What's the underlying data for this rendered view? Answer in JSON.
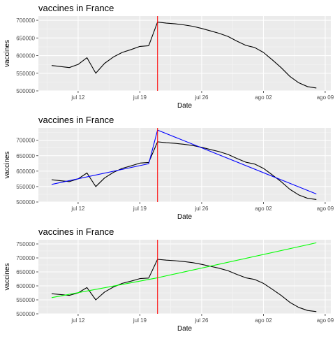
{
  "colors": {
    "panel": "#ebebeb",
    "grid_major": "#ffffff",
    "grid_minor": "#f5f5f5",
    "vline": "#ff0000",
    "data_line": "#000000"
  },
  "chart_data": [
    {
      "type": "line",
      "title": "vaccines in France",
      "xlabel": "Date",
      "ylabel": "vaccines",
      "x_tick_labels": [
        "jul 12",
        "jul 19",
        "jul 26",
        "ago 02",
        "ago 09"
      ],
      "y_tick_labels": [
        "500000",
        "550000",
        "600000",
        "650000",
        "700000"
      ],
      "ylim": [
        500000,
        712000
      ],
      "x_start_date": "2021-07-09",
      "vline_date": "2021-07-21",
      "series": [
        {
          "color": "#000000",
          "dates": [
            "2021-07-09",
            "2021-07-10",
            "2021-07-11",
            "2021-07-12",
            "2021-07-13",
            "2021-07-14",
            "2021-07-15",
            "2021-07-16",
            "2021-07-17",
            "2021-07-18",
            "2021-07-19",
            "2021-07-20",
            "2021-07-21",
            "2021-07-22",
            "2021-07-23",
            "2021-07-24",
            "2021-07-25",
            "2021-07-26",
            "2021-07-27",
            "2021-07-28",
            "2021-07-29",
            "2021-07-30",
            "2021-07-31",
            "2021-08-01",
            "2021-08-02",
            "2021-08-03",
            "2021-08-04",
            "2021-08-05",
            "2021-08-06",
            "2021-08-07",
            "2021-08-08"
          ],
          "values": [
            572000,
            569000,
            566000,
            575000,
            594000,
            550000,
            578000,
            596000,
            609000,
            617000,
            626000,
            628000,
            695000,
            692000,
            690000,
            687000,
            683000,
            677000,
            670000,
            663000,
            654000,
            641000,
            629000,
            623000,
            609000,
            588000,
            566000,
            541000,
            523000,
            512000,
            508000
          ]
        }
      ]
    },
    {
      "type": "line",
      "title": "vaccines in France",
      "xlabel": "Date",
      "ylabel": "vaccines",
      "x_tick_labels": [
        "jul 12",
        "jul 19",
        "jul 26",
        "ago 02",
        "ago 09"
      ],
      "y_tick_labels": [
        "500000",
        "550000",
        "600000",
        "650000",
        "700000"
      ],
      "ylim": [
        500000,
        740000
      ],
      "x_start_date": "2021-07-09",
      "vline_date": "2021-07-21",
      "series": [
        {
          "color": "#000000",
          "dates": [
            "2021-07-09",
            "2021-07-10",
            "2021-07-11",
            "2021-07-12",
            "2021-07-13",
            "2021-07-14",
            "2021-07-15",
            "2021-07-16",
            "2021-07-17",
            "2021-07-18",
            "2021-07-19",
            "2021-07-20",
            "2021-07-21",
            "2021-07-22",
            "2021-07-23",
            "2021-07-24",
            "2021-07-25",
            "2021-07-26",
            "2021-07-27",
            "2021-07-28",
            "2021-07-29",
            "2021-07-30",
            "2021-07-31",
            "2021-08-01",
            "2021-08-02",
            "2021-08-03",
            "2021-08-04",
            "2021-08-05",
            "2021-08-06",
            "2021-08-07",
            "2021-08-08"
          ],
          "values": [
            572000,
            569000,
            566000,
            575000,
            594000,
            550000,
            578000,
            596000,
            609000,
            617000,
            626000,
            628000,
            695000,
            692000,
            690000,
            687000,
            683000,
            677000,
            670000,
            663000,
            654000,
            641000,
            629000,
            623000,
            609000,
            588000,
            566000,
            541000,
            523000,
            512000,
            508000
          ]
        },
        {
          "color": "#0000ff",
          "dates": [
            "2021-07-09",
            "2021-07-20",
            "2021-07-21",
            "2021-08-08"
          ],
          "values": [
            557000,
            624000,
            733000,
            526000
          ]
        }
      ]
    },
    {
      "type": "line",
      "title": "vaccines in France",
      "xlabel": "Date",
      "ylabel": "vaccines",
      "x_tick_labels": [
        "jul 12",
        "jul 19",
        "jul 26",
        "ago 02",
        "ago 09"
      ],
      "y_tick_labels": [
        "500000",
        "550000",
        "600000",
        "650000",
        "700000",
        "750000"
      ],
      "ylim": [
        500000,
        765000
      ],
      "x_start_date": "2021-07-09",
      "vline_date": "2021-07-21",
      "series": [
        {
          "color": "#000000",
          "dates": [
            "2021-07-09",
            "2021-07-10",
            "2021-07-11",
            "2021-07-12",
            "2021-07-13",
            "2021-07-14",
            "2021-07-15",
            "2021-07-16",
            "2021-07-17",
            "2021-07-18",
            "2021-07-19",
            "2021-07-20",
            "2021-07-21",
            "2021-07-22",
            "2021-07-23",
            "2021-07-24",
            "2021-07-25",
            "2021-07-26",
            "2021-07-27",
            "2021-07-28",
            "2021-07-29",
            "2021-07-30",
            "2021-07-31",
            "2021-08-01",
            "2021-08-02",
            "2021-08-03",
            "2021-08-04",
            "2021-08-05",
            "2021-08-06",
            "2021-08-07",
            "2021-08-08"
          ],
          "values": [
            572000,
            569000,
            566000,
            575000,
            594000,
            550000,
            578000,
            596000,
            609000,
            617000,
            626000,
            628000,
            695000,
            692000,
            690000,
            687000,
            683000,
            677000,
            670000,
            663000,
            654000,
            641000,
            629000,
            623000,
            609000,
            588000,
            566000,
            541000,
            523000,
            512000,
            508000
          ]
        },
        {
          "color": "#00ff00",
          "dates": [
            "2021-07-09",
            "2021-07-21",
            "2021-08-08"
          ],
          "values": [
            558000,
            629000,
            754000
          ]
        }
      ]
    }
  ]
}
